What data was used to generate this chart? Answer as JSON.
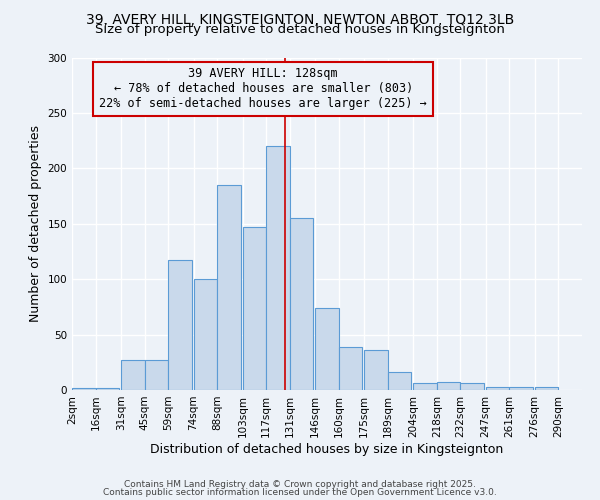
{
  "title1": "39, AVERY HILL, KINGSTEIGNTON, NEWTON ABBOT, TQ12 3LB",
  "title2": "Size of property relative to detached houses in Kingsteignton",
  "xlabel": "Distribution of detached houses by size in Kingsteignton",
  "ylabel": "Number of detached properties",
  "bar_left_edges": [
    2,
    16,
    31,
    45,
    59,
    74,
    88,
    103,
    117,
    131,
    146,
    160,
    175,
    189,
    204,
    218,
    232,
    247,
    261,
    276
  ],
  "bar_heights": [
    2,
    2,
    27,
    27,
    117,
    100,
    185,
    147,
    220,
    155,
    74,
    39,
    36,
    16,
    6,
    7,
    6,
    3,
    3,
    3
  ],
  "bin_width": 14,
  "bar_color": "#c9d9eb",
  "bar_edge_color": "#5b9bd5",
  "x_tick_labels": [
    "2sqm",
    "16sqm",
    "31sqm",
    "45sqm",
    "59sqm",
    "74sqm",
    "88sqm",
    "103sqm",
    "117sqm",
    "131sqm",
    "146sqm",
    "160sqm",
    "175sqm",
    "189sqm",
    "204sqm",
    "218sqm",
    "232sqm",
    "247sqm",
    "261sqm",
    "276sqm",
    "290sqm"
  ],
  "x_tick_positions": [
    2,
    16,
    31,
    45,
    59,
    74,
    88,
    103,
    117,
    131,
    146,
    160,
    175,
    189,
    204,
    218,
    232,
    247,
    261,
    276,
    290
  ],
  "vline_x": 128,
  "vline_color": "#cc0000",
  "annotation_text": "39 AVERY HILL: 128sqm\n← 78% of detached houses are smaller (803)\n22% of semi-detached houses are larger (225) →",
  "ylim": [
    0,
    300
  ],
  "yticks": [
    0,
    50,
    100,
    150,
    200,
    250,
    300
  ],
  "footer_text1": "Contains HM Land Registry data © Crown copyright and database right 2025.",
  "footer_text2": "Contains public sector information licensed under the Open Government Licence v3.0.",
  "background_color": "#edf2f8",
  "grid_color": "#ffffff",
  "title_fontsize": 10,
  "axis_label_fontsize": 9,
  "tick_label_fontsize": 7.5,
  "annotation_fontsize": 8.5,
  "footer_fontsize": 6.5
}
